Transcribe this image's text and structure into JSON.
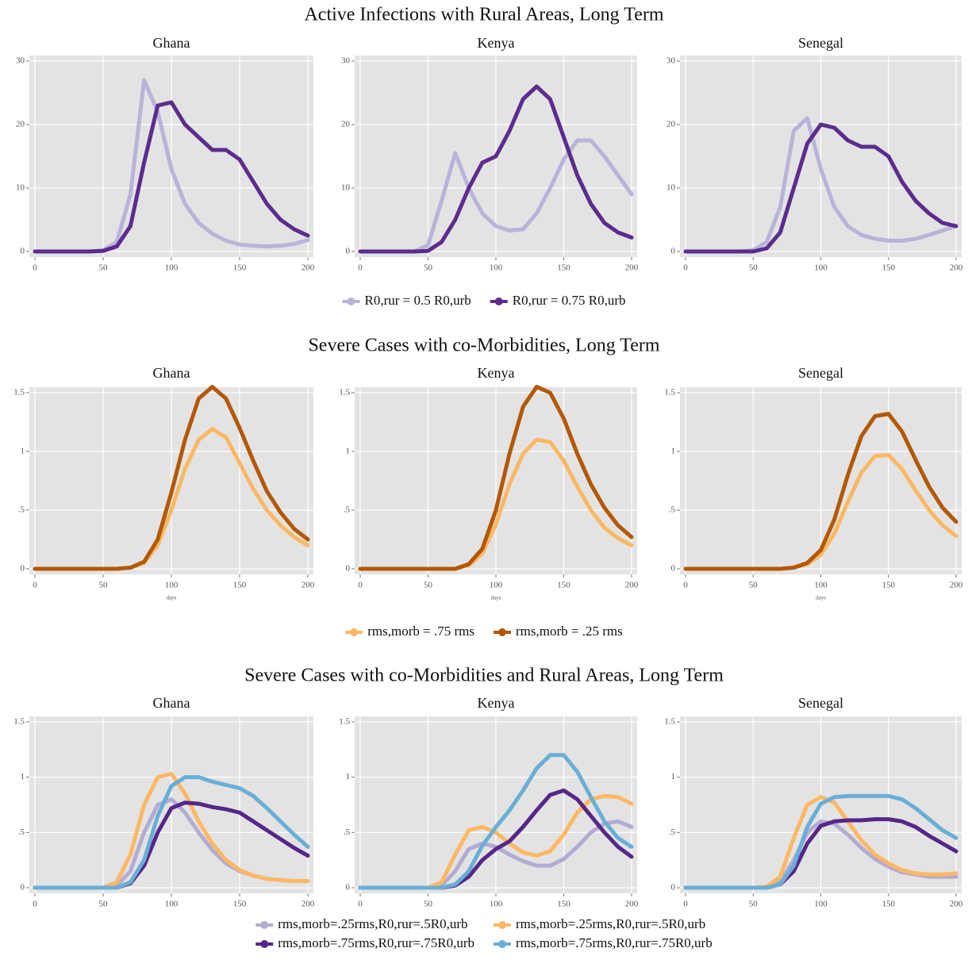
{
  "chart_data": [
    {
      "type": "line",
      "title": "Active Infections with Rural Areas, Long Term",
      "x": [
        0,
        10,
        20,
        30,
        40,
        50,
        60,
        70,
        80,
        90,
        100,
        110,
        120,
        130,
        140,
        150,
        160,
        170,
        180,
        190,
        200
      ],
      "xlim": [
        0,
        200
      ],
      "xticks": [
        0,
        50,
        100,
        150,
        200
      ],
      "ylim": [
        0,
        30
      ],
      "yticks": [
        0,
        10,
        20,
        30
      ],
      "grid": true,
      "series": [
        {
          "name": "R0,rur = 0.5 R0,urb",
          "color": "#b9b3d9"
        },
        {
          "name": "R0,rur = 0.75 R0,urb",
          "color": "#5b2c8e"
        }
      ],
      "panels": [
        {
          "title": "Ghana",
          "values": [
            [
              0,
              0,
              0,
              0,
              0,
              0.2,
              1.5,
              9,
              27,
              22,
              13,
              7.5,
              4.5,
              2.8,
              1.7,
              1.1,
              0.9,
              0.8,
              0.9,
              1.2,
              1.8
            ],
            [
              0,
              0,
              0,
              0,
              0,
              0.1,
              0.8,
              4,
              14,
              23,
              23.5,
              20,
              18,
              16,
              16,
              14.5,
              11,
              7.5,
              5,
              3.5,
              2.5
            ]
          ]
        },
        {
          "title": "Kenya",
          "values": [
            [
              0,
              0,
              0,
              0,
              0,
              1,
              8,
              15.5,
              10,
              6,
              4,
              3.3,
              3.5,
              6,
              10,
              14.5,
              17.5,
              17.5,
              15,
              12,
              9
            ],
            [
              0,
              0,
              0,
              0,
              0,
              0.1,
              1.5,
              5,
              10,
              14,
              15,
              19,
              24,
              26,
              24,
              18,
              12,
              7.5,
              4.5,
              3,
              2.2
            ]
          ]
        },
        {
          "title": "Senegal",
          "values": [
            [
              0,
              0,
              0,
              0,
              0,
              0.2,
              1.5,
              7,
              19,
              21,
              13,
              7,
              4,
              2.6,
              2,
              1.7,
              1.7,
              2,
              2.6,
              3.3,
              4
            ],
            [
              0,
              0,
              0,
              0,
              0,
              0,
              0.5,
              3,
              10,
              17,
              20,
              19.5,
              17.5,
              16.5,
              16.5,
              15,
              11,
              8,
              6,
              4.5,
              4
            ]
          ]
        }
      ]
    },
    {
      "type": "line",
      "title": "Severe Cases with co-Morbidities, Long Term",
      "x": [
        0,
        10,
        20,
        30,
        40,
        50,
        60,
        70,
        80,
        90,
        100,
        110,
        120,
        130,
        140,
        150,
        160,
        170,
        180,
        190,
        200
      ],
      "xlim": [
        0,
        200
      ],
      "xticks": [
        0,
        50,
        100,
        150,
        200
      ],
      "x_label": "days",
      "ylim": [
        0,
        1.5
      ],
      "yticks": [
        0,
        {
          "value": 0.5,
          "label": ".5"
        },
        1,
        1.5
      ],
      "grid": true,
      "series": [
        {
          "name": "rms,morb = .75 rms",
          "color": "#fbb862"
        },
        {
          "name": "rms,morb = .25 rms",
          "color": "#b35806"
        }
      ],
      "panels": [
        {
          "title": "Ghana",
          "values": [
            [
              0,
              0,
              0,
              0,
              0,
              0,
              0,
              0.01,
              0.05,
              0.2,
              0.5,
              0.85,
              1.1,
              1.19,
              1.12,
              0.9,
              0.68,
              0.5,
              0.37,
              0.27,
              0.2
            ],
            [
              0,
              0,
              0,
              0,
              0,
              0,
              0,
              0.01,
              0.06,
              0.25,
              0.65,
              1.1,
              1.45,
              1.55,
              1.45,
              1.2,
              0.92,
              0.66,
              0.48,
              0.34,
              0.25
            ]
          ]
        },
        {
          "title": "Kenya",
          "values": [
            [
              0,
              0,
              0,
              0,
              0,
              0,
              0,
              0,
              0.03,
              0.13,
              0.38,
              0.72,
              0.98,
              1.1,
              1.08,
              0.92,
              0.7,
              0.5,
              0.35,
              0.26,
              0.2
            ],
            [
              0,
              0,
              0,
              0,
              0,
              0,
              0,
              0,
              0.04,
              0.17,
              0.5,
              0.98,
              1.38,
              1.55,
              1.5,
              1.28,
              0.98,
              0.72,
              0.52,
              0.37,
              0.27
            ]
          ]
        },
        {
          "title": "Senegal",
          "values": [
            [
              0,
              0,
              0,
              0,
              0,
              0,
              0,
              0,
              0.01,
              0.04,
              0.12,
              0.3,
              0.57,
              0.82,
              0.96,
              0.97,
              0.85,
              0.67,
              0.5,
              0.37,
              0.28
            ],
            [
              0,
              0,
              0,
              0,
              0,
              0,
              0,
              0,
              0.01,
              0.05,
              0.16,
              0.42,
              0.8,
              1.13,
              1.3,
              1.32,
              1.17,
              0.93,
              0.7,
              0.52,
              0.4
            ]
          ]
        }
      ]
    },
    {
      "type": "line",
      "title": "Severe Cases with co-Morbidities and Rural Areas, Long Term",
      "x": [
        0,
        10,
        20,
        30,
        40,
        50,
        60,
        70,
        80,
        90,
        100,
        110,
        120,
        130,
        140,
        150,
        160,
        170,
        180,
        190,
        200
      ],
      "xlim": [
        0,
        200
      ],
      "xticks": [
        0,
        50,
        100,
        150,
        200
      ],
      "ylim": [
        0,
        1.5
      ],
      "yticks": [
        0,
        {
          "value": 0.5,
          "label": ".5"
        },
        1,
        1.5
      ],
      "grid": true,
      "series": [
        {
          "name": "rms,morb=.25rms,R0,rur=.5R0,urb",
          "color": "#b2abd2"
        },
        {
          "name": "rms,morb=.25rms,R0,rur=.5R0,urb",
          "color": "#fdb863"
        },
        {
          "name": "rms,morb=.75rms,R0,rur=.75R0,urb",
          "color": "#542788"
        },
        {
          "name": "rms,morb=.75rms,R0,rur=.75R0,urb",
          "color": "#6aaed6"
        }
      ],
      "panels": [
        {
          "title": "Ghana",
          "values": [
            [
              0,
              0,
              0,
              0,
              0,
              0,
              0.02,
              0.15,
              0.5,
              0.75,
              0.8,
              0.68,
              0.5,
              0.34,
              0.22,
              0.15,
              0.11,
              0.08,
              0.07,
              0.06,
              0.06
            ],
            [
              0,
              0,
              0,
              0,
              0,
              0,
              0.05,
              0.3,
              0.75,
              1.0,
              1.03,
              0.85,
              0.6,
              0.4,
              0.25,
              0.16,
              0.11,
              0.08,
              0.07,
              0.06,
              0.06
            ],
            [
              0,
              0,
              0,
              0,
              0,
              0,
              0,
              0.04,
              0.2,
              0.5,
              0.72,
              0.77,
              0.76,
              0.73,
              0.71,
              0.68,
              0.6,
              0.52,
              0.44,
              0.36,
              0.29
            ],
            [
              0,
              0,
              0,
              0,
              0,
              0,
              0,
              0.05,
              0.25,
              0.65,
              0.92,
              1.0,
              1.0,
              0.96,
              0.93,
              0.9,
              0.83,
              0.72,
              0.6,
              0.48,
              0.37
            ]
          ]
        },
        {
          "title": "Kenya",
          "values": [
            [
              0,
              0,
              0,
              0,
              0,
              0,
              0.02,
              0.15,
              0.35,
              0.4,
              0.37,
              0.3,
              0.24,
              0.2,
              0.2,
              0.26,
              0.37,
              0.5,
              0.58,
              0.6,
              0.55
            ],
            [
              0,
              0,
              0,
              0,
              0,
              0,
              0.05,
              0.3,
              0.52,
              0.55,
              0.5,
              0.4,
              0.32,
              0.29,
              0.33,
              0.48,
              0.68,
              0.8,
              0.83,
              0.82,
              0.76
            ],
            [
              0,
              0,
              0,
              0,
              0,
              0,
              0,
              0.02,
              0.1,
              0.25,
              0.35,
              0.42,
              0.55,
              0.7,
              0.84,
              0.88,
              0.8,
              0.65,
              0.5,
              0.37,
              0.28
            ],
            [
              0,
              0,
              0,
              0,
              0,
              0,
              0,
              0.03,
              0.15,
              0.38,
              0.55,
              0.7,
              0.88,
              1.08,
              1.2,
              1.2,
              1.05,
              0.82,
              0.6,
              0.45,
              0.37
            ]
          ]
        },
        {
          "title": "Senegal",
          "values": [
            [
              0,
              0,
              0,
              0,
              0,
              0,
              0,
              0.05,
              0.25,
              0.5,
              0.6,
              0.58,
              0.48,
              0.36,
              0.26,
              0.19,
              0.14,
              0.12,
              0.1,
              0.1,
              0.1
            ],
            [
              0,
              0,
              0,
              0,
              0,
              0,
              0.01,
              0.1,
              0.45,
              0.75,
              0.82,
              0.77,
              0.6,
              0.43,
              0.3,
              0.22,
              0.16,
              0.13,
              0.12,
              0.12,
              0.13
            ],
            [
              0,
              0,
              0,
              0,
              0,
              0,
              0,
              0.03,
              0.15,
              0.4,
              0.56,
              0.6,
              0.61,
              0.61,
              0.62,
              0.62,
              0.6,
              0.55,
              0.47,
              0.4,
              0.33
            ],
            [
              0,
              0,
              0,
              0,
              0,
              0,
              0,
              0.03,
              0.2,
              0.55,
              0.76,
              0.82,
              0.83,
              0.83,
              0.83,
              0.83,
              0.8,
              0.72,
              0.62,
              0.52,
              0.45
            ]
          ]
        }
      ]
    }
  ]
}
